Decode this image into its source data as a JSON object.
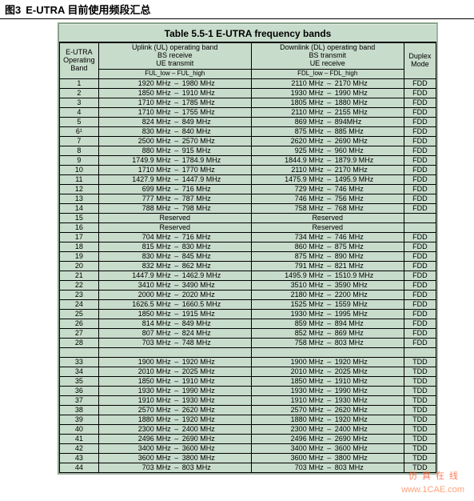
{
  "caption": {
    "label": "图3",
    "text": "E-UTRA 目前使用频段汇总"
  },
  "table": {
    "title": "Table 5.5-1 E-UTRA frequency bands",
    "head": {
      "band": "E-UTRA\nOperating\nBand",
      "ul": "Uplink (UL) operating band\nBS receive\nUE transmit",
      "dl": "Downlink (DL) operating band\nBS transmit\nUE receive",
      "mode": "Duplex\nMode",
      "sub_ul": "FUL_low  –  FUL_high",
      "sub_dl": "FDL_low  –  FDL_high"
    },
    "rows": [
      {
        "b": "1",
        "ul_lo": "1920 MHz",
        "ul_hi": "1980 MHz",
        "dl_lo": "2110 MHz",
        "dl_hi": "2170 MHz",
        "m": "FDD"
      },
      {
        "b": "2",
        "ul_lo": "1850 MHz",
        "ul_hi": "1910 MHz",
        "dl_lo": "1930 MHz",
        "dl_hi": "1990 MHz",
        "m": "FDD"
      },
      {
        "b": "3",
        "ul_lo": "1710 MHz",
        "ul_hi": "1785 MHz",
        "dl_lo": "1805 MHz",
        "dl_hi": "1880 MHz",
        "m": "FDD"
      },
      {
        "b": "4",
        "ul_lo": "1710 MHz",
        "ul_hi": "1755 MHz",
        "dl_lo": "2110 MHz",
        "dl_hi": "2155 MHz",
        "m": "FDD"
      },
      {
        "b": "5",
        "ul_lo": "824 MHz",
        "ul_hi": "849 MHz",
        "dl_lo": "869 MHz",
        "dl_hi": "894MHz",
        "m": "FDD"
      },
      {
        "b": "6¹",
        "ul_lo": "830 MHz",
        "ul_hi": "840 MHz",
        "dl_lo": "875 MHz",
        "dl_hi": "885 MHz",
        "m": "FDD"
      },
      {
        "b": "7",
        "ul_lo": "2500 MHz",
        "ul_hi": "2570 MHz",
        "dl_lo": "2620 MHz",
        "dl_hi": "2690 MHz",
        "m": "FDD"
      },
      {
        "b": "8",
        "ul_lo": "880 MHz",
        "ul_hi": "915 MHz",
        "dl_lo": "925 MHz",
        "dl_hi": "960 MHz",
        "m": "FDD"
      },
      {
        "b": "9",
        "ul_lo": "1749.9 MHz",
        "ul_hi": "1784.9 MHz",
        "dl_lo": "1844.9 MHz",
        "dl_hi": "1879.9 MHz",
        "m": "FDD"
      },
      {
        "b": "10",
        "ul_lo": "1710 MHz",
        "ul_hi": "1770 MHz",
        "dl_lo": "2110 MHz",
        "dl_hi": "2170 MHz",
        "m": "FDD"
      },
      {
        "b": "11",
        "ul_lo": "1427.9 MHz",
        "ul_hi": "1447.9 MHz",
        "dl_lo": "1475.9 MHz",
        "dl_hi": "1495.9 MHz",
        "m": "FDD"
      },
      {
        "b": "12",
        "ul_lo": "699 MHz",
        "ul_hi": "716 MHz",
        "dl_lo": "729 MHz",
        "dl_hi": "746 MHz",
        "m": "FDD"
      },
      {
        "b": "13",
        "ul_lo": "777 MHz",
        "ul_hi": "787 MHz",
        "dl_lo": "746 MHz",
        "dl_hi": "756 MHz",
        "m": "FDD"
      },
      {
        "b": "14",
        "ul_lo": "788 MHz",
        "ul_hi": "798 MHz",
        "dl_lo": "758 MHz",
        "dl_hi": "768 MHz",
        "m": "FDD"
      },
      {
        "b": "15",
        "reserved": true
      },
      {
        "b": "16",
        "reserved": true
      },
      {
        "b": "17",
        "ul_lo": "704 MHz",
        "ul_hi": "716 MHz",
        "dl_lo": "734 MHz",
        "dl_hi": "746 MHz",
        "m": "FDD"
      },
      {
        "b": "18",
        "ul_lo": "815 MHz",
        "ul_hi": "830 MHz",
        "dl_lo": "860 MHz",
        "dl_hi": "875 MHz",
        "m": "FDD"
      },
      {
        "b": "19",
        "ul_lo": "830 MHz",
        "ul_hi": "845 MHz",
        "dl_lo": "875 MHz",
        "dl_hi": "890 MHz",
        "m": "FDD"
      },
      {
        "b": "20",
        "ul_lo": "832 MHz",
        "ul_hi": "862 MHz",
        "dl_lo": "791 MHz",
        "dl_hi": "821 MHz",
        "m": "FDD"
      },
      {
        "b": "21",
        "ul_lo": "1447.9 MHz",
        "ul_hi": "1462.9 MHz",
        "dl_lo": "1495.9 MHz",
        "dl_hi": "1510.9 MHz",
        "m": "FDD"
      },
      {
        "b": "22",
        "ul_lo": "3410 MHz",
        "ul_hi": "3490 MHz",
        "dl_lo": "3510 MHz",
        "dl_hi": "3590 MHz",
        "m": "FDD"
      },
      {
        "b": "23",
        "ul_lo": "2000 MHz",
        "ul_hi": "2020 MHz",
        "dl_lo": "2180 MHz",
        "dl_hi": "2200 MHz",
        "m": "FDD"
      },
      {
        "b": "24",
        "ul_lo": "1626.5 MHz",
        "ul_hi": "1660.5 MHz",
        "dl_lo": "1525 MHz",
        "dl_hi": "1559 MHz",
        "m": "FDD"
      },
      {
        "b": "25",
        "ul_lo": "1850 MHz",
        "ul_hi": "1915 MHz",
        "dl_lo": "1930 MHz",
        "dl_hi": "1995 MHz",
        "m": "FDD"
      },
      {
        "b": "26",
        "ul_lo": "814 MHz",
        "ul_hi": "849 MHz",
        "dl_lo": "859 MHz",
        "dl_hi": "894 MHz",
        "m": "FDD"
      },
      {
        "b": "27",
        "ul_lo": "807 MHz",
        "ul_hi": "824 MHz",
        "dl_lo": "852 MHz",
        "dl_hi": "869 MHz",
        "m": "FDD"
      },
      {
        "b": "28",
        "ul_lo": "703 MHz",
        "ul_hi": "748 MHz",
        "dl_lo": "758 MHz",
        "dl_hi": "803 MHz",
        "m": "FDD"
      },
      {
        "gap": true
      },
      {
        "b": "33",
        "ul_lo": "1900 MHz",
        "ul_hi": "1920 MHz",
        "dl_lo": "1900 MHz",
        "dl_hi": "1920 MHz",
        "m": "TDD"
      },
      {
        "b": "34",
        "ul_lo": "2010 MHz",
        "ul_hi": "2025 MHz",
        "dl_lo": "2010 MHz",
        "dl_hi": "2025 MHz",
        "m": "TDD"
      },
      {
        "b": "35",
        "ul_lo": "1850 MHz",
        "ul_hi": "1910 MHz",
        "dl_lo": "1850 MHz",
        "dl_hi": "1910 MHz",
        "m": "TDD"
      },
      {
        "b": "36",
        "ul_lo": "1930 MHz",
        "ul_hi": "1990 MHz",
        "dl_lo": "1930 MHz",
        "dl_hi": "1990 MHz",
        "m": "TDD"
      },
      {
        "b": "37",
        "ul_lo": "1910 MHz",
        "ul_hi": "1930 MHz",
        "dl_lo": "1910 MHz",
        "dl_hi": "1930 MHz",
        "m": "TDD"
      },
      {
        "b": "38",
        "ul_lo": "2570 MHz",
        "ul_hi": "2620 MHz",
        "dl_lo": "2570 MHz",
        "dl_hi": "2620 MHz",
        "m": "TDD"
      },
      {
        "b": "39",
        "ul_lo": "1880 MHz",
        "ul_hi": "1920 MHz",
        "dl_lo": "1880 MHz",
        "dl_hi": "1920 MHz",
        "m": "TDD"
      },
      {
        "b": "40",
        "ul_lo": "2300 MHz",
        "ul_hi": "2400 MHz",
        "dl_lo": "2300 MHz",
        "dl_hi": "2400 MHz",
        "m": "TDD"
      },
      {
        "b": "41",
        "ul_lo": "2496 MHz",
        "ul_hi": "2690 MHz",
        "dl_lo": "2496 MHz",
        "dl_hi": "2690 MHz",
        "m": "TDD"
      },
      {
        "b": "42",
        "ul_lo": "3400 MHz",
        "ul_hi": "3600 MHz",
        "dl_lo": "3400 MHz",
        "dl_hi": "3600 MHz",
        "m": "TDD"
      },
      {
        "b": "43",
        "ul_lo": "3600 MHz",
        "ul_hi": "3800 MHz",
        "dl_lo": "3600 MHz",
        "dl_hi": "3800 MHz",
        "m": "TDD"
      },
      {
        "b": "44",
        "ul_lo": "703 MHz",
        "ul_hi": "803 MHz",
        "dl_lo": "703 MHz",
        "dl_hi": "803 MHz",
        "m": "TDD"
      }
    ],
    "reserved_label": "Reserved",
    "dash": "–"
  },
  "watermark": {
    "cn": "仿真在线",
    "url": "www.1CAE.com"
  },
  "colors": {
    "panel_bg": "#c8dccb",
    "border_dark": "#8aa38c",
    "line": "#000000",
    "watermark": "#ff6a3c"
  }
}
